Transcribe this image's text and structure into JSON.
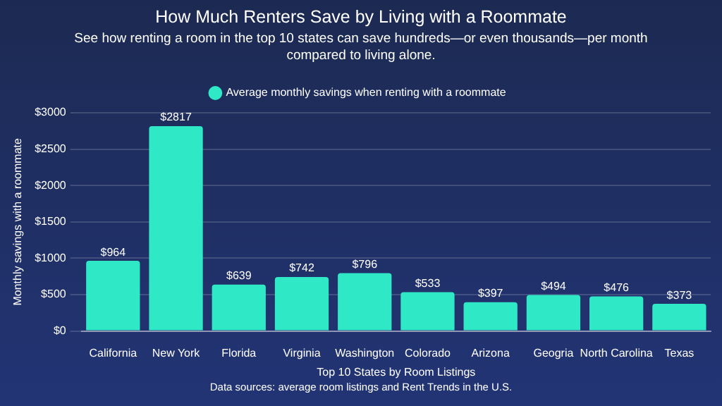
{
  "chart_data": {
    "type": "bar",
    "title": "How Much Renters Save by Living with a Roommate",
    "subtitle": "See how renting a room in the top 10 states can save hundreds—or even thousands—per month compared to living alone.",
    "categories": [
      "California",
      "New York",
      "Florida",
      "Virginia",
      "Washington",
      "Colorado",
      "Arizona",
      "Geogria",
      "North Carolina",
      "Texas"
    ],
    "series": [
      {
        "name": "Average monthly savings when renting with a roommate",
        "color": "#2ee8c6",
        "values": [
          964,
          2817,
          639,
          742,
          796,
          533,
          397,
          494,
          476,
          373
        ]
      }
    ],
    "value_labels": [
      "$964",
      "$2817",
      "$639",
      "$742",
      "$796",
      "$533",
      "$397",
      "$494",
      "$476",
      "$373"
    ],
    "ylim": [
      0,
      3000
    ],
    "yticks": [
      {
        "value": 0,
        "label": "$0"
      },
      {
        "value": 500,
        "label": "$500"
      },
      {
        "value": 1000,
        "label": "$1000"
      },
      {
        "value": 1500,
        "label": "$1500"
      },
      {
        "value": 2000,
        "label": "$2000"
      },
      {
        "value": 2500,
        "label": "$2500"
      },
      {
        "value": 3000,
        "label": "$3000"
      }
    ],
    "xlabel": "Top 10 States by Room Listings",
    "ylabel": "Monthly savings with a roommate",
    "grid": "y",
    "legend": "top",
    "annotations": [
      "Data sources: average room listings and Rent Trends in the U.S."
    ]
  }
}
